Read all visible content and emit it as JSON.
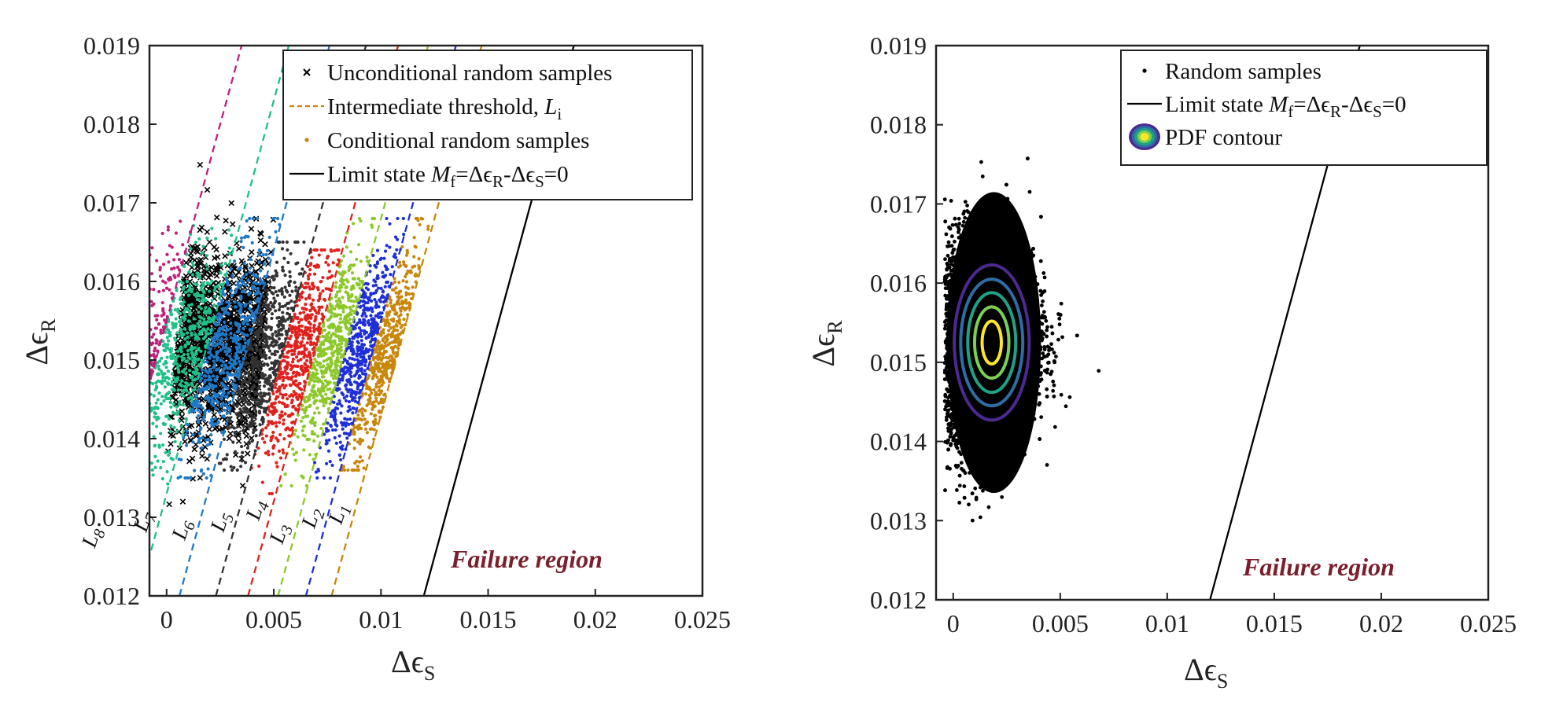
{
  "chart_data": [
    {
      "type": "scatter",
      "title": "",
      "xlabel_main": "Δϵ",
      "xlabel_sub": "S",
      "ylabel_main": "Δϵ",
      "ylabel_sub": "R",
      "xlim": [
        -0.0008,
        0.025
      ],
      "ylim": [
        0.012,
        0.019
      ],
      "x_ticks": [
        0,
        0.005,
        0.01,
        0.015,
        0.02,
        0.025
      ],
      "x_tick_labels": [
        "0",
        "0.005",
        "0.01",
        "0.015",
        "0.02",
        "0.025"
      ],
      "y_ticks": [
        0.012,
        0.013,
        0.014,
        0.015,
        0.016,
        0.017,
        0.018,
        0.019
      ],
      "y_tick_labels": [
        "0.012",
        "0.013",
        "0.014",
        "0.015",
        "0.016",
        "0.017",
        "0.018",
        "0.019"
      ],
      "grid": false,
      "legend_position": "top-right",
      "legend": [
        {
          "marker": "x",
          "color": "#000000",
          "text": "Unconditional random samples"
        },
        {
          "marker": "dashed",
          "color": "#c8860b",
          "text": "Intermediate threshold, ",
          "italic": "L",
          "sub": "i"
        },
        {
          "marker": "dot",
          "color": "#c8860b",
          "text": "Conditional random samples"
        },
        {
          "marker": "line",
          "color": "#000000",
          "text": "Limit state ",
          "italic": "M",
          "sub": "f",
          "tail": "=Δϵ",
          "sub2": "R",
          "tail2": "-Δϵ",
          "sub3": "S",
          "tail3": "=0"
        }
      ],
      "annotation": "Failure region",
      "limit_state": {
        "offset": 0,
        "color": "#000000"
      },
      "thresholds": [
        {
          "label": "L",
          "sub": "1",
          "offset": 0.0043,
          "color": "#c8860b"
        },
        {
          "label": "L",
          "sub": "2",
          "offset": 0.0055,
          "color": "#1f2fd8"
        },
        {
          "label": "L",
          "sub": "3",
          "offset": 0.0068,
          "color": "#8cc82a"
        },
        {
          "label": "L",
          "sub": "4",
          "offset": 0.0082,
          "color": "#e0211d"
        },
        {
          "label": "L",
          "sub": "5",
          "offset": 0.0097,
          "color": "#333333"
        },
        {
          "label": "L",
          "sub": "6",
          "offset": 0.0114,
          "color": "#1f78c8"
        },
        {
          "label": "L",
          "sub": "7",
          "offset": 0.0133,
          "color": "#20c08a"
        },
        {
          "label": "L",
          "sub": "8",
          "offset": 0.0155,
          "color": "#c0207a"
        }
      ],
      "series": [
        {
          "name": "Unconditional random samples",
          "marker": "x",
          "color": "#000000",
          "x_range": [
            0.0005,
            0.0045
          ],
          "y_mean": 0.0152,
          "y_sd": 0.0006,
          "count": 1400
        },
        {
          "name": "Conditional random samples",
          "marker": "dot",
          "color": "#c8860b",
          "band": [
            0.0043,
            0.0055
          ],
          "y_range": [
            0.0136,
            0.0168
          ],
          "count": 500
        },
        {
          "marker": "dot",
          "color": "#1f2fd8",
          "band": [
            0.0055,
            0.0068
          ],
          "y_range": [
            0.0135,
            0.0168
          ],
          "count": 500
        },
        {
          "marker": "dot",
          "color": "#8cc82a",
          "band": [
            0.0068,
            0.0082
          ],
          "y_range": [
            0.0134,
            0.0168
          ],
          "count": 500
        },
        {
          "marker": "dot",
          "color": "#e0211d",
          "band": [
            0.0082,
            0.0097
          ],
          "y_range": [
            0.0133,
            0.0164
          ],
          "count": 500
        },
        {
          "marker": "dot",
          "color": "#333333",
          "band": [
            0.0097,
            0.0114
          ],
          "y_range": [
            0.0136,
            0.0165
          ],
          "count": 500
        },
        {
          "marker": "dot",
          "color": "#1f78c8",
          "band": [
            0.0114,
            0.0133
          ],
          "y_range": [
            0.0135,
            0.0168
          ],
          "count": 500
        },
        {
          "marker": "dot",
          "color": "#20c08a",
          "band": [
            0.0133,
            0.0155
          ],
          "y_range": [
            0.0134,
            0.0168
          ],
          "count": 500
        },
        {
          "marker": "dot",
          "color": "#c0207a",
          "band": [
            0.0155,
            0.025
          ],
          "y_range": [
            0.0131,
            0.0168
          ],
          "count": 900
        }
      ]
    },
    {
      "type": "scatter",
      "title": "",
      "xlabel_main": "Δϵ",
      "xlabel_sub": "S",
      "ylabel_main": "Δϵ",
      "ylabel_sub": "R",
      "xlim": [
        -0.0008,
        0.025
      ],
      "ylim": [
        0.012,
        0.019
      ],
      "x_ticks": [
        0,
        0.005,
        0.01,
        0.015,
        0.02,
        0.025
      ],
      "x_tick_labels": [
        "0",
        "0.005",
        "0.01",
        "0.015",
        "0.02",
        "0.025"
      ],
      "y_ticks": [
        0.012,
        0.013,
        0.014,
        0.015,
        0.016,
        0.017,
        0.018,
        0.019
      ],
      "y_tick_labels": [
        "0.012",
        "0.013",
        "0.014",
        "0.015",
        "0.016",
        "0.017",
        "0.018",
        "0.019"
      ],
      "grid": false,
      "legend_position": "top-right",
      "legend": [
        {
          "marker": "dot",
          "color": "#000000",
          "text": "Random samples"
        },
        {
          "marker": "line",
          "color": "#000000",
          "text": "Limit state ",
          "italic": "M",
          "sub": "f",
          "tail": "=Δϵ",
          "sub2": "R",
          "tail2": "-Δϵ",
          "sub3": "S",
          "tail3": "=0"
        },
        {
          "marker": "contour",
          "color": "#fde725",
          "text": "PDF contour"
        }
      ],
      "annotation": "Failure region",
      "limit_state": {
        "offset": 0,
        "color": "#000000"
      },
      "series": [
        {
          "name": "Random samples",
          "marker": "dot",
          "color": "#000000",
          "x_mean": 0.002,
          "x_sd": 0.0014,
          "y_mean": 0.0152,
          "y_sd": 0.00065,
          "count": 6000
        }
      ],
      "contours": {
        "center": [
          0.0018,
          0.01525
        ],
        "levels": [
          {
            "rx": 0.00175,
            "ry": 0.00098,
            "color": "#4b2991"
          },
          {
            "rx": 0.00145,
            "ry": 0.0008,
            "color": "#2e6da4"
          },
          {
            "rx": 0.00112,
            "ry": 0.00063,
            "color": "#1fa187"
          },
          {
            "rx": 0.0008,
            "ry": 0.00045,
            "color": "#7ad151"
          },
          {
            "rx": 0.00045,
            "ry": 0.00027,
            "color": "#fde725"
          }
        ]
      }
    }
  ]
}
